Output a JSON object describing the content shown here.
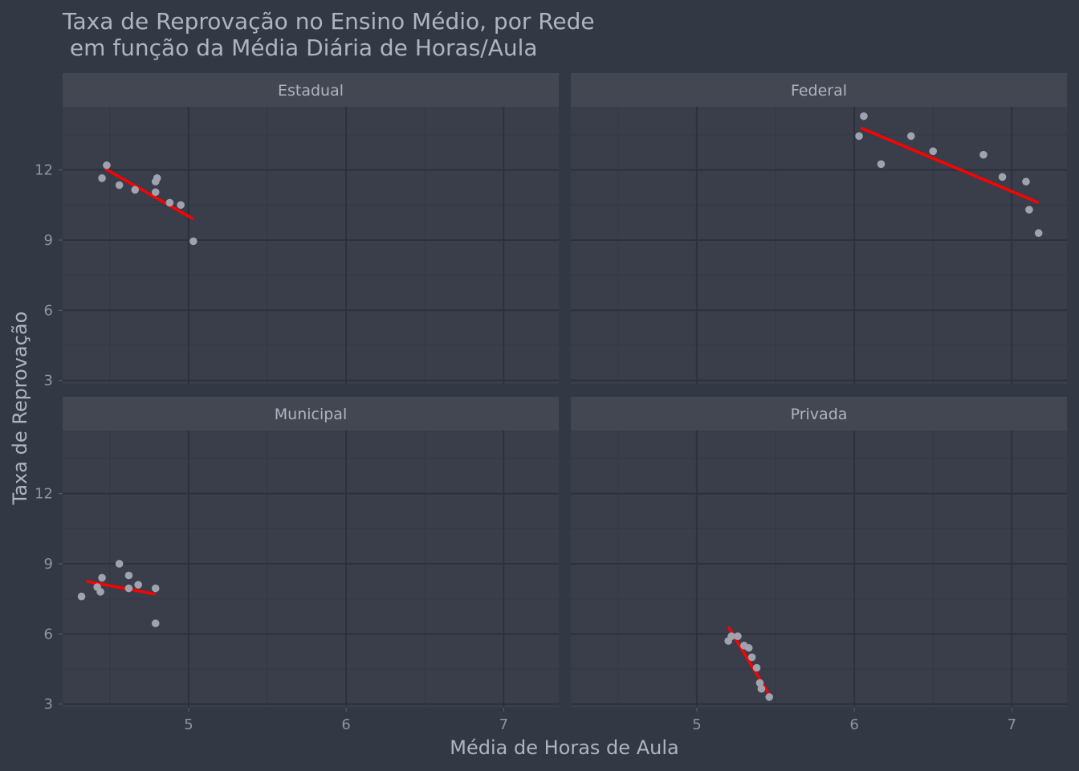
{
  "chart_data": {
    "type": "scatter",
    "title_line1": "Taxa de Reprovação no Ensino Médio, por Rede",
    "title_line2": " em função da Média Diária de Horas/Aula",
    "xlabel": "Média de Horas de Aula",
    "ylabel": "Taxa de Reprovação",
    "xlim": [
      4.2,
      7.35
    ],
    "ylim": [
      2.85,
      14.7
    ],
    "x_ticks": [
      5,
      6,
      7
    ],
    "y_ticks": [
      3,
      6,
      9,
      12
    ],
    "grid": true,
    "point_color": "#9ea3ad",
    "fit_line_color": "#ff0000",
    "panel_color": "#393e4a",
    "strip_color": "#424752",
    "background": "#333845",
    "panels": [
      {
        "name": "Estadual",
        "points": [
          [
            4.45,
            11.65
          ],
          [
            4.48,
            12.2
          ],
          [
            4.56,
            11.35
          ],
          [
            4.66,
            11.15
          ],
          [
            4.79,
            11.05
          ],
          [
            4.79,
            11.5
          ],
          [
            4.8,
            11.65
          ],
          [
            4.88,
            10.6
          ],
          [
            4.95,
            10.5
          ],
          [
            5.03,
            8.95
          ]
        ],
        "fit": [
          [
            4.47,
            12.05
          ],
          [
            5.03,
            9.9
          ]
        ]
      },
      {
        "name": "Federal",
        "points": [
          [
            6.03,
            13.45
          ],
          [
            6.06,
            14.3
          ],
          [
            6.17,
            12.25
          ],
          [
            6.36,
            13.45
          ],
          [
            6.5,
            12.8
          ],
          [
            6.82,
            12.65
          ],
          [
            6.94,
            11.7
          ],
          [
            7.09,
            11.5
          ],
          [
            7.11,
            10.3
          ],
          [
            7.17,
            9.3
          ]
        ],
        "fit": [
          [
            6.04,
            13.8
          ],
          [
            7.17,
            10.6
          ]
        ]
      },
      {
        "name": "Municipal",
        "points": [
          [
            4.32,
            7.6
          ],
          [
            4.42,
            8.0
          ],
          [
            4.44,
            7.8
          ],
          [
            4.45,
            8.4
          ],
          [
            4.56,
            9.0
          ],
          [
            4.62,
            8.5
          ],
          [
            4.62,
            7.95
          ],
          [
            4.68,
            8.1
          ],
          [
            4.79,
            7.95
          ],
          [
            4.79,
            6.45
          ]
        ],
        "fit": [
          [
            4.35,
            8.25
          ],
          [
            4.79,
            7.7
          ]
        ]
      },
      {
        "name": "Privada",
        "points": [
          [
            5.2,
            5.7
          ],
          [
            5.22,
            5.9
          ],
          [
            5.26,
            5.9
          ],
          [
            5.3,
            5.5
          ],
          [
            5.33,
            5.4
          ],
          [
            5.35,
            5.0
          ],
          [
            5.38,
            4.55
          ],
          [
            5.4,
            3.9
          ],
          [
            5.41,
            3.65
          ],
          [
            5.46,
            3.3
          ]
        ],
        "fit": [
          [
            5.2,
            6.3
          ],
          [
            5.46,
            3.4
          ]
        ]
      }
    ]
  }
}
